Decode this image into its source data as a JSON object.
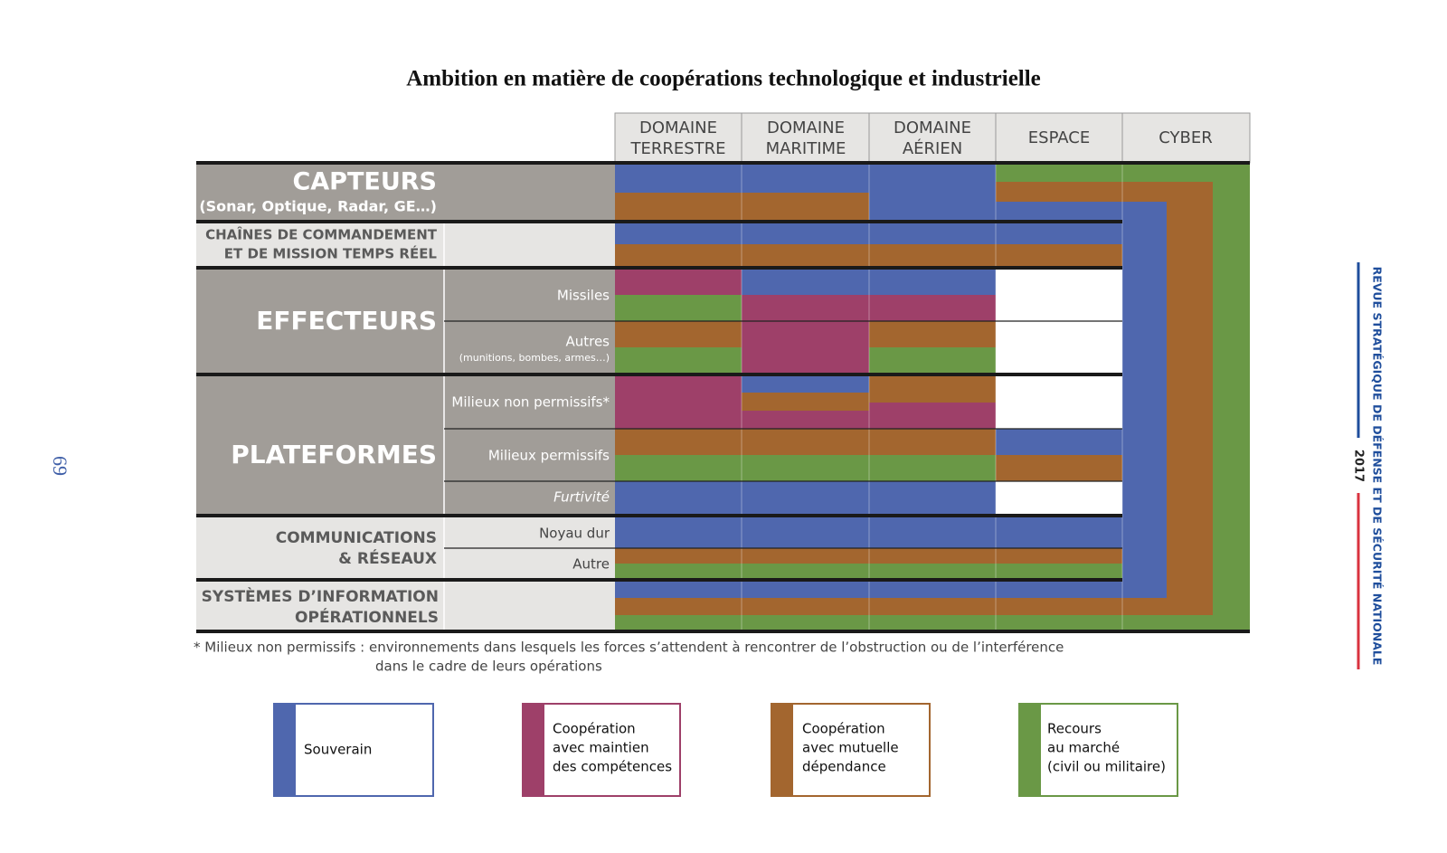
{
  "title": "Ambition en matière de coopérations technologique et industrielle",
  "columns": [
    [
      "DOMAINE",
      "TERRESTRE"
    ],
    [
      "DOMAINE",
      "MARITIME"
    ],
    [
      "DOMAINE",
      "AÉRIEN"
    ],
    [
      "ESPACE"
    ],
    [
      "CYBER"
    ]
  ],
  "groups": [
    {
      "label": [
        "CAPTEURS"
      ],
      "note": "(Sonar, Optique, Radar, GE…)"
    },
    {
      "label": [
        "CHAÎNES DE COMMANDEMENT",
        "ET DE MISSION TEMPS RÉEL"
      ]
    },
    {
      "label": [
        "EFFECTEURS"
      ],
      "items": [
        {
          "label": "Missiles"
        },
        {
          "label": "Autres",
          "note": "(munitions, bombes, armes…)"
        }
      ]
    },
    {
      "label": [
        "PLATEFORMES"
      ],
      "items": [
        {
          "label": "Milieux non permissifs*"
        },
        {
          "label": "Milieux permissifs"
        },
        {
          "label": "Furtivité"
        }
      ]
    },
    {
      "label": [
        "COMMUNICATIONS",
        "& RÉSEAUX"
      ],
      "items": [
        {
          "label": "Noyau dur"
        },
        {
          "label": "Autre"
        }
      ]
    },
    {
      "label": [
        "SYSTÈMES D’INFORMATION",
        "OPÉRATIONNELS"
      ]
    }
  ],
  "footnote": [
    "* Milieux non permissifs : environnements dans lesquels les forces s’attendent à rencontrer de l’obstruction ou de l’interférence",
    "dans le cadre de leurs opérations"
  ],
  "legend": [
    [
      "Souverain"
    ],
    [
      "Coopération",
      "avec maintien",
      "des compétences"
    ],
    [
      "Coopération",
      "avec mutuelle",
      "dépendance"
    ],
    [
      "Recours",
      "au marché",
      "(civil ou militaire)"
    ]
  ],
  "side": {
    "page_number": "69",
    "publication": "REVUE STRATÉGIQUE DE DÉFENSE ET DE SÉCURITÉ NATIONALE",
    "year": "2017"
  }
}
